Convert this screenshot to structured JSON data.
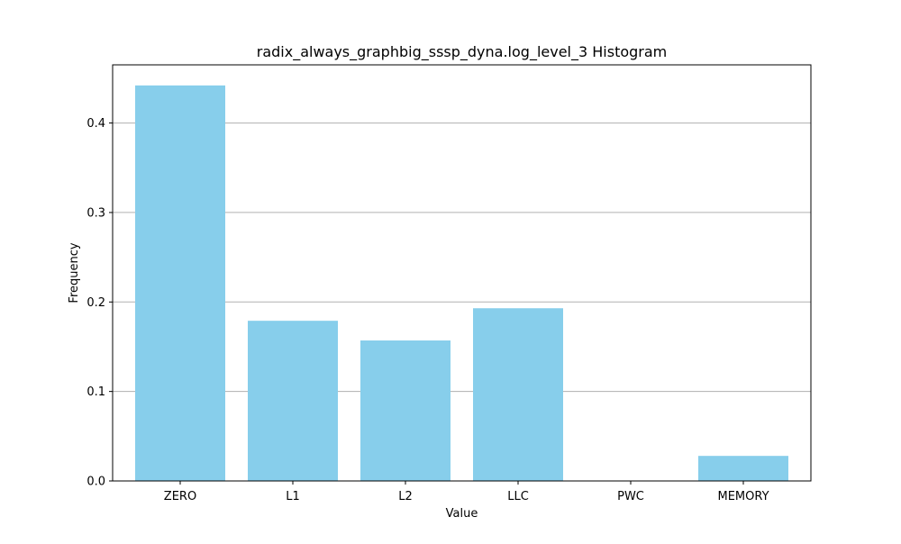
{
  "chart_data": {
    "type": "bar",
    "title": "radix_always_graphbig_sssp_dyna.log_level_3 Histogram",
    "xlabel": "Value",
    "ylabel": "Frequency",
    "categories": [
      "ZERO",
      "L1",
      "L2",
      "LLC",
      "PWC",
      "MEMORY"
    ],
    "values": [
      0.442,
      0.179,
      0.157,
      0.193,
      0.0,
      0.028
    ],
    "ylim": [
      0,
      0.465
    ],
    "yticks": [
      0.0,
      0.1,
      0.2,
      0.3,
      0.4
    ],
    "ytick_labels": [
      "0.0",
      "0.1",
      "0.2",
      "0.3",
      "0.4"
    ],
    "grid": "y-axis",
    "legend": "none",
    "bar_color": "#87ceeb",
    "grid_color": "#b0b0b0"
  }
}
